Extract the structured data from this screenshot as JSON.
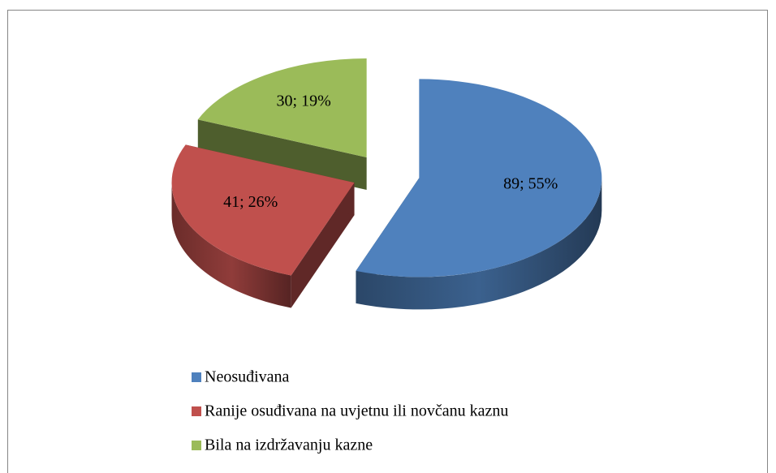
{
  "chart_data": {
    "type": "pie",
    "categories": [
      "Neosuđivana",
      "Ranije osuđivana na uvjetnu ili novčanu kaznu",
      "Bila na izdržavanju kazne"
    ],
    "values": [
      89,
      41,
      30
    ],
    "value_labels": [
      "89; 55%",
      "41; 26%",
      "30; 19%"
    ],
    "colors": [
      "#4f81bd",
      "#c0504d",
      "#9bbb59"
    ],
    "legend": "bottom"
  }
}
